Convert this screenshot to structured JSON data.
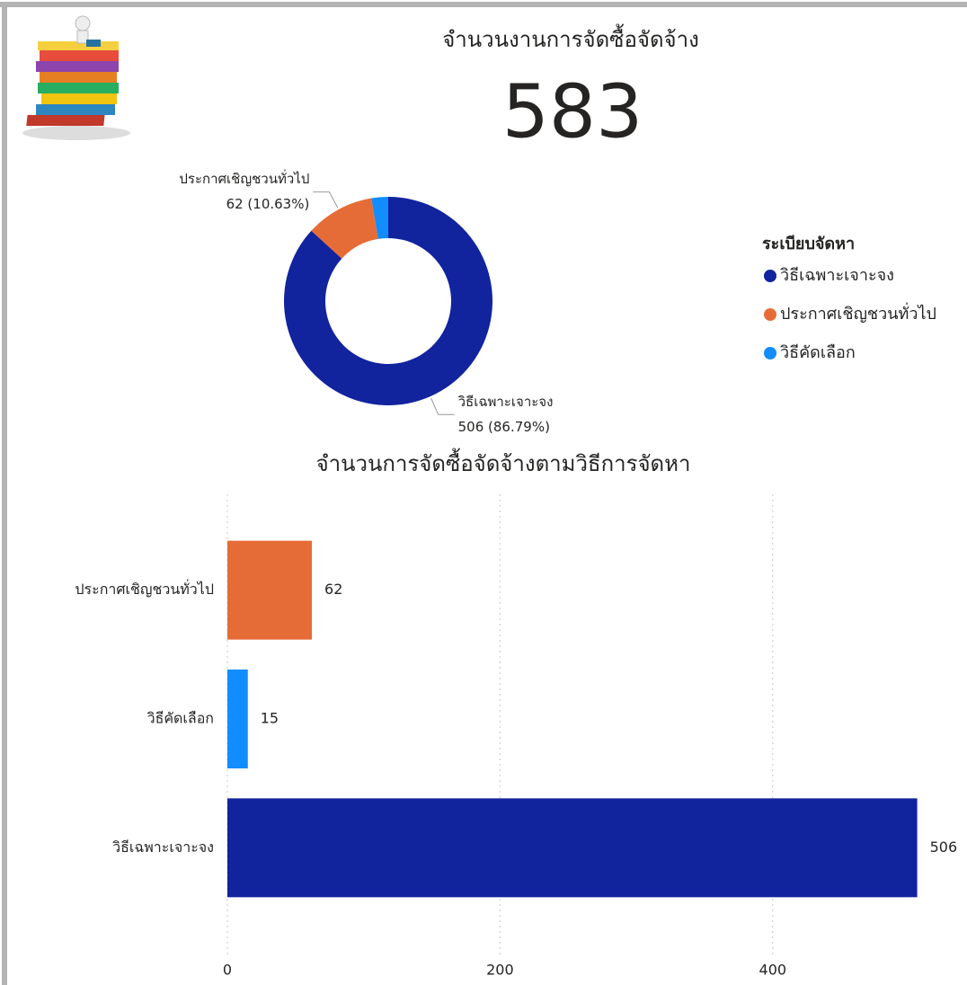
{
  "chart_data": [
    {
      "type": "card",
      "title": "จำนวนงานการจัดซื้อจัดจ้าง",
      "value": 583
    },
    {
      "type": "pie",
      "donut": true,
      "legend_title": "ระเบียบจัดหา",
      "legend": "right",
      "categories": [
        "วิธีเฉพาะเจาะจง",
        "ประกาศเชิญชวนทั่วไป",
        "วิธีคัดเลือก"
      ],
      "values": [
        506,
        62,
        15
      ],
      "value_labels": [
        "506 (86.79%)",
        "62 (10.63%)",
        null
      ],
      "colors": [
        "#12239e",
        "#e66c37",
        "#118dff"
      ]
    },
    {
      "type": "bar",
      "orientation": "horizontal",
      "title": "จำนวนการจัดซื้อจัดจ้างตามวิธีการจัดหา",
      "categories": [
        "ประกาศเชิญชวนทั่วไป",
        "วิธีคัดเลือก",
        "วิธีเฉพาะเจาะจง"
      ],
      "values": [
        62,
        15,
        506
      ],
      "colors": [
        "#e66c37",
        "#118dff",
        "#12239e"
      ],
      "xlim": [
        0,
        520
      ],
      "xticks": [
        0,
        200,
        400
      ],
      "grid": true
    }
  ]
}
